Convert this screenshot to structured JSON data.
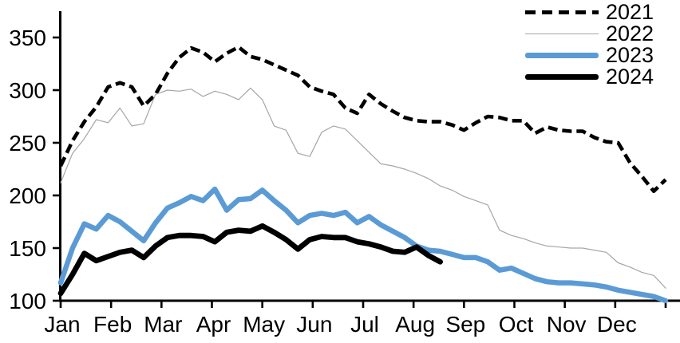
{
  "chart_data": {
    "type": "line",
    "title": "",
    "xlabel": "",
    "ylabel": "",
    "x_unit": "week-of-year",
    "x_tick_labels": [
      "Jan",
      "Feb",
      "Mar",
      "Apr",
      "May",
      "Jun",
      "Jul",
      "Aug",
      "Sep",
      "Oct",
      "Nov",
      "Dec"
    ],
    "y_ticks": [
      100,
      150,
      200,
      250,
      300,
      350
    ],
    "ylim": [
      100,
      362
    ],
    "grid": "off",
    "legend_position": "top-right",
    "colors": {
      "axis": "#000000",
      "blue": "#5B9BD5",
      "gray": "#A6A6A6",
      "black": "#000000"
    },
    "series": [
      {
        "name": "2021",
        "style": "dashed",
        "color": "#000000",
        "width": 4.6,
        "values": [
          228,
          252,
          270,
          284,
          303,
          307,
          303,
          285,
          296,
          316,
          331,
          340,
          336,
          327,
          335,
          341,
          332,
          329,
          324,
          319,
          314,
          303,
          299,
          296,
          283,
          278,
          296,
          287,
          280,
          274,
          271,
          270,
          270,
          267,
          262,
          269,
          275,
          274,
          271,
          271,
          259,
          265,
          262,
          261,
          261,
          255,
          251,
          250,
          231,
          218,
          204,
          215
        ]
      },
      {
        "name": "2022",
        "style": "solid",
        "color": "#A6A6A6",
        "width": 1.2,
        "values": [
          212,
          240,
          254,
          272,
          269,
          283,
          266,
          268,
          296,
          300,
          299,
          301,
          294,
          299,
          296,
          291,
          302,
          291,
          266,
          262,
          240,
          237,
          260,
          266,
          263,
          252,
          241,
          230,
          228,
          225,
          221,
          216,
          209,
          205,
          199,
          195,
          191,
          167,
          162,
          159,
          155,
          152,
          151,
          150,
          150,
          148,
          146,
          136,
          132,
          127,
          124,
          112
        ]
      },
      {
        "name": "2023",
        "style": "solid",
        "color": "#5B9BD5",
        "width": 6.5,
        "values": [
          117,
          150,
          173,
          168,
          181,
          175,
          166,
          157,
          174,
          188,
          193,
          199,
          195,
          206,
          186,
          196,
          197,
          205,
          195,
          186,
          174,
          181,
          183,
          181,
          184,
          174,
          180,
          172,
          166,
          160,
          152,
          148,
          147,
          144,
          141,
          141,
          137,
          129,
          131,
          126,
          121,
          118,
          117,
          117,
          116,
          115,
          113,
          110,
          108,
          106,
          104,
          100
        ]
      },
      {
        "name": "2024",
        "style": "solid",
        "color": "#000000",
        "width": 6.8,
        "values": [
          107,
          125,
          145,
          138,
          142,
          146,
          148,
          141,
          152,
          160,
          162,
          162,
          161,
          156,
          165,
          167,
          166,
          171,
          165,
          158,
          149,
          158,
          161,
          160,
          160,
          156,
          154,
          151,
          147,
          146,
          151,
          143,
          137
        ]
      }
    ]
  }
}
